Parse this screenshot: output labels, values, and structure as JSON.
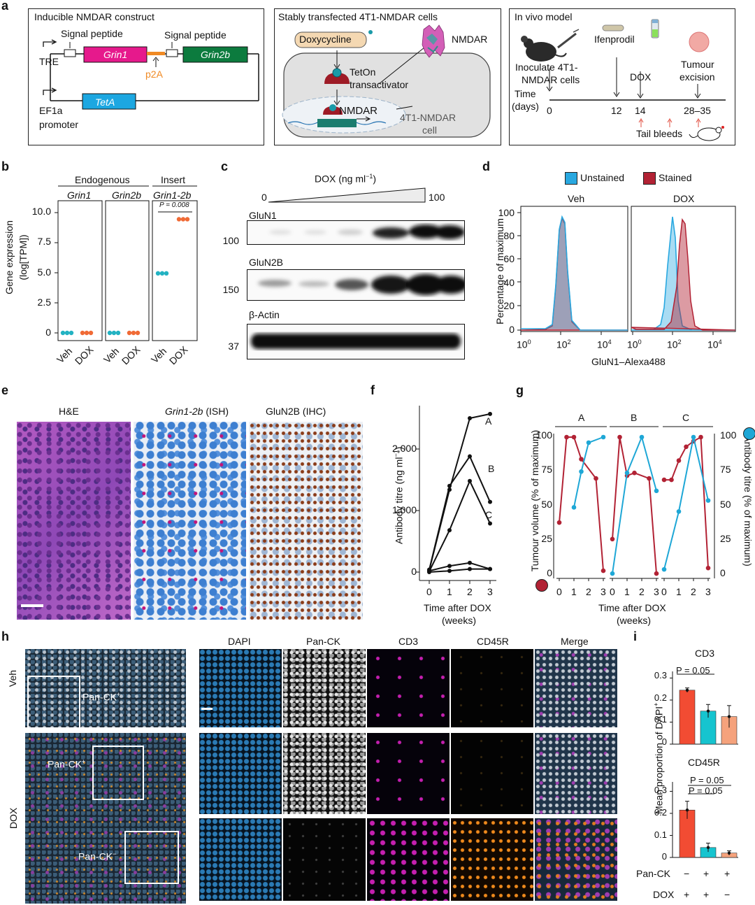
{
  "panel_a": {
    "label": "a",
    "construct": {
      "title": "Inducible NMDAR construct",
      "signal_peptide_1": "Signal peptide",
      "signal_peptide_2": "Signal peptide",
      "grin1": "Grin1",
      "grin2b": "Grin2b",
      "tre": "TRE",
      "p2a": "p2A",
      "tetA": "TetA",
      "ef1a": "EF1a",
      "promoter": "promoter"
    },
    "cells": {
      "title": "Stably transfected 4T1-NMDAR cells",
      "doxycycline": "Doxycycline",
      "nmdar_top": "NMDAR",
      "teton_1": "TetOn",
      "teton_2": "transactivator",
      "nmdar_gene": "NMDAR",
      "cell_1": "4T1-NMDAR",
      "cell_2": "cell"
    },
    "invivo": {
      "title": "In vivo model",
      "inoculate_1": "Inoculate 4T1-",
      "inoculate_2": "NMDAR cells",
      "ifenprodil": "Ifenprodil",
      "dox": "DOX",
      "tumour_1": "Tumour",
      "tumour_2": "excision",
      "time_1": "Time",
      "time_2": "(days)",
      "d0": "0",
      "d12": "12",
      "d14": "14",
      "d28": "28–35",
      "tail_bleeds": "Tail bleeds"
    }
  },
  "panel_b": {
    "label": "b",
    "group_endogenous": "Endogenous",
    "group_insert": "Insert",
    "genes": [
      "Grin1",
      "Grin2b",
      "Grin1-2b"
    ],
    "ylabel_1": "Gene expression",
    "ylabel_2": "(log[TPM])",
    "yticks": [
      "0",
      "2.5",
      "5.0",
      "7.5",
      "10.0"
    ],
    "xticks": [
      "Veh",
      "DOX"
    ],
    "pvalue": "P = 0.008",
    "colors": {
      "veh": "#22b2c2",
      "dox": "#f06a35"
    }
  },
  "panel_c": {
    "label": "c",
    "dox_label": "DOX (ng ml",
    "dox_sup": "−1",
    "dox_close": ")",
    "dox_min": "0",
    "dox_max": "100",
    "blots": [
      {
        "name": "GluN1",
        "mw": "100"
      },
      {
        "name": "GluN2B",
        "mw": "150"
      },
      {
        "name": "β-Actin",
        "mw": "37"
      }
    ]
  },
  "panel_d": {
    "label": "d",
    "legend_unstained": "Unstained",
    "legend_stained": "Stained",
    "facet_veh": "Veh",
    "facet_dox": "DOX",
    "ylabel": "Percentage of maximum",
    "yticks": [
      "0",
      "20",
      "40",
      "60",
      "80",
      "100"
    ],
    "xtick_base": "10",
    "xtick_exps": [
      "0",
      "2",
      "4"
    ],
    "xlabel": "GluN1–Alexa488",
    "colors": {
      "unstained": "#29a8e0",
      "stained": "#b22234"
    }
  },
  "panel_e": {
    "label": "e",
    "titles": [
      "H&E",
      "Grin1-2b",
      "(ISH)",
      "GluN2B (IHC)"
    ]
  },
  "panel_f": {
    "label": "f",
    "ylabel": "Antibody titre (ng ml",
    "ylabel_sup": "−1",
    "ylabel_close": ")",
    "yticks": [
      "0",
      "1,000",
      "2,000"
    ],
    "xticks": [
      "0",
      "1",
      "2",
      "3"
    ],
    "xlabel_1": "Time after DOX",
    "xlabel_2": "(weeks)",
    "series_labels": [
      "A",
      "B",
      "C"
    ]
  },
  "panel_g": {
    "label": "g",
    "facets": [
      "A",
      "B",
      "C"
    ],
    "ylabel_left": "Tumour volume (% of maximum)",
    "ylabel_right": "Antibody titre (% of maximum)",
    "yticks": [
      "0",
      "25",
      "50",
      "75",
      "100"
    ],
    "xticks": [
      "0",
      "1",
      "2",
      "3"
    ],
    "xlabel_1": "Time after DOX",
    "xlabel_2": "(weeks)",
    "colors": {
      "tumour": "#b22234",
      "antibody": "#1ea7d6"
    }
  },
  "panel_h": {
    "label": "h",
    "channels": [
      "DAPI",
      "Pan-CK",
      "CD3",
      "CD45R",
      "Merge"
    ],
    "row_veh": "Veh",
    "row_dox": "DOX",
    "panck": "Pan-CK",
    "sup_plus": "+",
    "sup_minus": "−"
  },
  "panel_i": {
    "label": "i",
    "ylabel": "Mean proportion of DAPI",
    "ylabel_sup": "+",
    "cd3_title": "CD3",
    "cd45r_title": "CD45R",
    "cd3_yticks": [
      "0",
      "0.1",
      "0.2",
      "0.3"
    ],
    "cd45r_yticks": [
      "0",
      "0.1",
      "0.2",
      "0.3"
    ],
    "cd3_p": "P = 0.05",
    "cd45r_p1": "P = 0.05",
    "cd45r_p2": "P = 0.05",
    "panck_row": "Pan-CK",
    "panck_signs": [
      "−",
      "+",
      "+"
    ],
    "dox_row": "DOX",
    "dox_signs": [
      "+",
      "+",
      "−"
    ],
    "colors": [
      "#f24c33",
      "#16c4cf",
      "#f5a27c"
    ]
  },
  "chart_data": [
    {
      "panel": "b",
      "type": "scatter",
      "ylabel": "Gene expression (log[TPM])",
      "ylim": [
        0,
        10.5
      ],
      "categories": [
        "Veh",
        "DOX"
      ],
      "series": [
        {
          "name": "Grin1",
          "values": [
            0,
            0
          ]
        },
        {
          "name": "Grin2b",
          "values": [
            0,
            0
          ]
        },
        {
          "name": "Grin1-2b",
          "values": [
            4.95,
            9.45
          ]
        }
      ]
    },
    {
      "panel": "f",
      "type": "line",
      "xlabel": "Time after DOX (weeks)",
      "ylabel": "Antibody titre (ng ml−1)",
      "x": [
        0,
        1,
        2,
        3
      ],
      "ylim": [
        0,
        2600
      ],
      "series": [
        {
          "name": "A",
          "values": [
            30,
            1340,
            2500,
            2570
          ]
        },
        {
          "name": "B",
          "values": [
            40,
            1400,
            1880,
            1140
          ]
        },
        {
          "name": "C",
          "values": [
            10,
            680,
            1480,
            790
          ]
        },
        {
          "values": [
            20,
            100,
            150,
            50
          ]
        },
        {
          "values": [
            0,
            20,
            50,
            50
          ]
        }
      ]
    },
    {
      "panel": "g",
      "type": "line",
      "xlabel": "Time after DOX (weeks)",
      "ylabel": "Tumour volume (% of maximum)",
      "ylabel_right": "Antibody titre (% of maximum)",
      "x": [
        0,
        0.5,
        1,
        1.5,
        2,
        2.5,
        3
      ],
      "facets": [
        {
          "name": "A",
          "tumour": [
            [
              0,
              38
            ],
            [
              0.5,
              100
            ],
            [
              1,
              100
            ],
            [
              1.5,
              84
            ],
            [
              2.5,
              70
            ],
            [
              3,
              3
            ]
          ],
          "antibody": [
            [
              1,
              49
            ],
            [
              1.5,
              75
            ],
            [
              2,
              96
            ],
            [
              3,
              100
            ]
          ]
        },
        {
          "name": "B",
          "tumour": [
            [
              0,
              26
            ],
            [
              0.5,
              100
            ],
            [
              1,
              72
            ],
            [
              1.5,
              74
            ],
            [
              2.5,
              70
            ],
            [
              3,
              1
            ]
          ],
          "antibody": [
            [
              0,
              1
            ],
            [
              1,
              74
            ],
            [
              2,
              100
            ],
            [
              3,
              61
            ]
          ]
        },
        {
          "name": "C",
          "tumour": [
            [
              0,
              69
            ],
            [
              0.5,
              69
            ],
            [
              1,
              83
            ],
            [
              1.5,
              93
            ],
            [
              2,
              97
            ],
            [
              2.5,
              100
            ],
            [
              3,
              5
            ]
          ],
          "antibody": [
            [
              0,
              4
            ],
            [
              1,
              46
            ],
            [
              2,
              100
            ],
            [
              3,
              54
            ]
          ]
        }
      ]
    },
    {
      "panel": "i",
      "type": "bar",
      "categories": [
        "Pan-CK−/DOX+",
        "Pan-CK+/DOX+",
        "Pan-CK+/DOX−"
      ],
      "ylabel": "Mean proportion of DAPI+",
      "ylim": [
        0,
        0.33
      ],
      "series": [
        {
          "name": "CD3",
          "values": [
            0.245,
            0.15,
            0.125
          ],
          "errors": [
            0.01,
            0.03,
            0.05
          ]
        },
        {
          "name": "CD45R",
          "values": [
            0.215,
            0.045,
            0.02
          ],
          "errors": [
            0.04,
            0.02,
            0.01
          ]
        }
      ]
    }
  ]
}
